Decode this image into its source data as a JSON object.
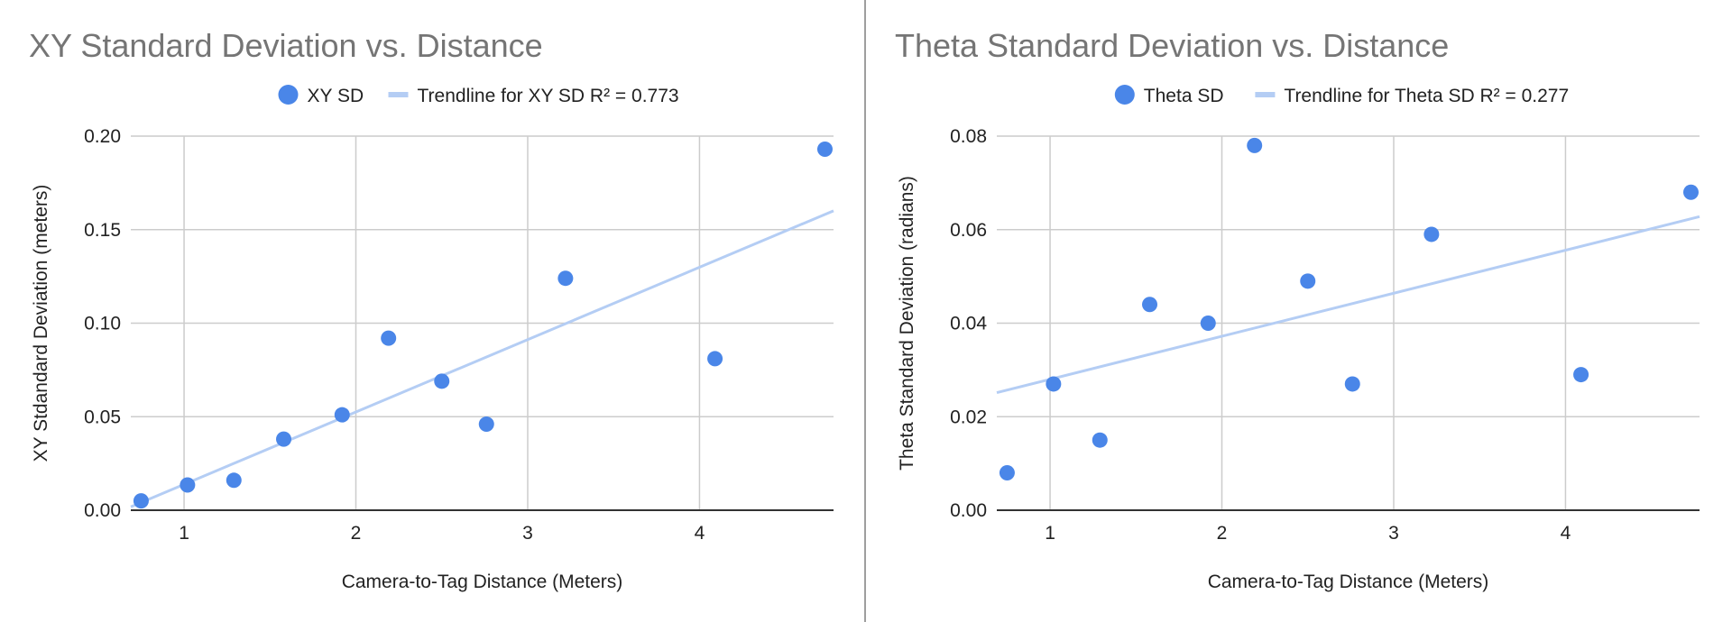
{
  "colors": {
    "point": "#4a86e8",
    "trend": "#b4cdf4",
    "grid": "#cccccc",
    "axis": "#333333",
    "title": "#757575",
    "divider": "#9e9e9e"
  },
  "chart_data": [
    {
      "type": "scatter",
      "title": "XY Standard Deviation vs. Distance",
      "xlabel": "Camera-to-Tag Distance (Meters)",
      "ylabel": "XY Stdandard Deviation (meters)",
      "legend": {
        "position": "top",
        "point_label": "XY SD",
        "trend_label": "Trendline for XY SD R² = 0.773"
      },
      "xlim": [
        0.69,
        4.78
      ],
      "ylim": [
        0,
        0.2
      ],
      "xticks": [
        1,
        2,
        3,
        4
      ],
      "xtick_labels": [
        "1",
        "2",
        "3",
        "4"
      ],
      "yticks": [
        0,
        0.05,
        0.1,
        0.15,
        0.2
      ],
      "ytick_labels": [
        "0.00",
        "0.05",
        "0.10",
        "0.15",
        "0.20"
      ],
      "grid": true,
      "series": [
        {
          "name": "XY SD",
          "x": [
            0.75,
            1.02,
            1.29,
            1.58,
            1.92,
            2.19,
            2.5,
            2.76,
            3.22,
            4.09,
            4.73
          ],
          "y": [
            0.005,
            0.0135,
            0.016,
            0.038,
            0.051,
            0.092,
            0.069,
            0.046,
            0.124,
            0.081,
            0.193
          ]
        }
      ],
      "trendline": {
        "slope": 0.0387,
        "intercept": -0.0249,
        "r2": 0.773
      }
    },
    {
      "type": "scatter",
      "title": "Theta Standard Deviation vs. Distance",
      "xlabel": "Camera-to-Tag Distance (Meters)",
      "ylabel": "Theta Standard Deviation (radians)",
      "legend": {
        "position": "top",
        "point_label": "Theta SD",
        "trend_label": "Trendline for Theta SD R² = 0.277"
      },
      "xlim": [
        0.69,
        4.78
      ],
      "ylim": [
        0,
        0.08
      ],
      "xticks": [
        1,
        2,
        3,
        4
      ],
      "xtick_labels": [
        "1",
        "2",
        "3",
        "4"
      ],
      "yticks": [
        0,
        0.02,
        0.04,
        0.06,
        0.08
      ],
      "ytick_labels": [
        "0.00",
        "0.02",
        "0.04",
        "0.06",
        "0.08"
      ],
      "grid": true,
      "series": [
        {
          "name": "Theta SD",
          "x": [
            0.75,
            1.02,
            1.29,
            1.58,
            1.92,
            2.19,
            2.5,
            2.76,
            3.22,
            4.09,
            4.73
          ],
          "y": [
            0.008,
            0.027,
            0.015,
            0.044,
            0.04,
            0.078,
            0.049,
            0.027,
            0.059,
            0.029,
            0.068
          ]
        }
      ],
      "trendline": {
        "slope": 0.0092,
        "intercept": 0.0188,
        "r2": 0.277
      }
    }
  ]
}
